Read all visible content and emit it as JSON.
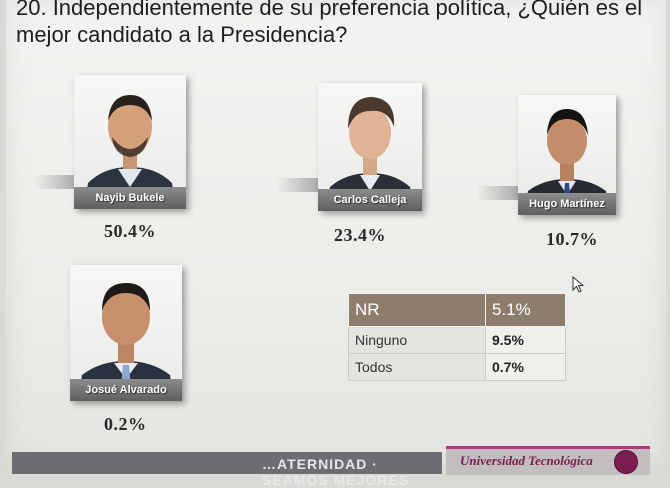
{
  "question": "20. Independientemente de su preferencia política, ¿Quién es el mejor candidato a la Presidencia?",
  "candidates": [
    {
      "name": "Nayib Bukele",
      "percent": "50.4%"
    },
    {
      "name": "Carlos Calleja",
      "percent": "23.4%"
    },
    {
      "name": "Hugo Martínez",
      "percent": "10.7%"
    },
    {
      "name": "Josué Alvarado",
      "percent": "0.2%"
    }
  ],
  "nr_table": {
    "header": {
      "label": "NR",
      "value": "5.1%"
    },
    "rows": [
      {
        "label": "Ninguno",
        "value": "9.5%"
      },
      {
        "label": "Todos",
        "value": "0.7%"
      }
    ]
  },
  "footer": {
    "slogan": "…ATERNIDAD · SEAMOS MEJORES",
    "brand": "Universidad Tecnológica"
  },
  "colors": {
    "name_bar": "#6f6f6f",
    "nr_header": "#8d7d6c",
    "brand_accent": "#b6357a",
    "brand_text": "#7a1e4f"
  }
}
